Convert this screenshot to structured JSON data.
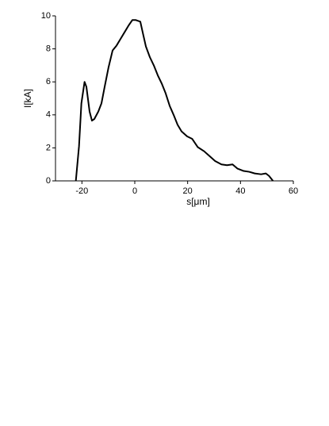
{
  "chart_data": {
    "type": "line",
    "xlabel": "s[μm]",
    "ylabel": "I[kA]",
    "x": [
      -22.3,
      -21.1,
      -20.2,
      -19,
      -18.3,
      -17.1,
      -16.2,
      -15.3,
      -13.8,
      -12.6,
      -11.4,
      -9.9,
      -8.4,
      -6.9,
      -5.4,
      -3.9,
      -2.4,
      -0.9,
      0.3,
      2.1,
      3.0,
      4.2,
      5.7,
      7.2,
      8.7,
      10.2,
      11.7,
      13.2,
      14.7,
      16.2,
      17.7,
      19.8,
      21.7,
      23.8,
      26.2,
      28.3,
      30.4,
      32.8,
      34.9,
      37,
      38.8,
      41.2,
      43.3,
      45.4,
      47.8,
      49.6,
      50.8,
      52.3
    ],
    "series": [
      {
        "color": "#000000",
        "values": [
          0,
          2.1,
          4.7,
          6.0,
          5.7,
          4.2,
          3.65,
          3.75,
          4.2,
          4.7,
          5.7,
          6.9,
          7.9,
          8.2,
          8.6,
          9.0,
          9.4,
          9.75,
          9.75,
          9.65,
          9.0,
          8.15,
          7.5,
          7.0,
          6.4,
          5.9,
          5.3,
          4.55,
          4.0,
          3.4,
          3.0,
          2.7,
          2.55,
          2.05,
          1.8,
          1.5,
          1.2,
          1.0,
          0.95,
          1.0,
          0.75,
          0.6,
          0.55,
          0.45,
          0.4,
          0.45,
          0.3,
          0
        ]
      }
    ],
    "xlim": [
      -30,
      60
    ],
    "xticks": [
      -20,
      0,
      20,
      40,
      60
    ],
    "ylim": [
      0,
      10
    ],
    "yticks": [
      0,
      2,
      4,
      6,
      8,
      10
    ]
  }
}
